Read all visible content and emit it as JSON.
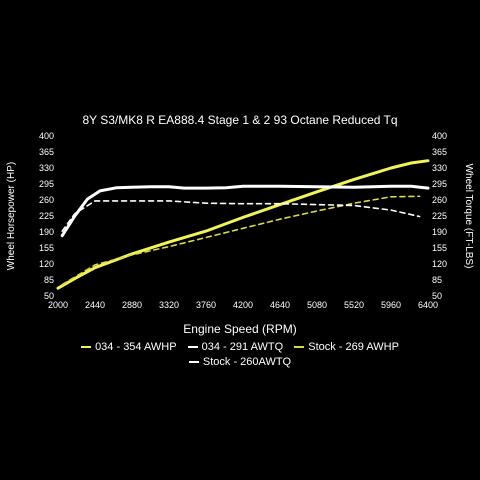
{
  "chart_data": {
    "type": "line",
    "title": "8Y S3/MK8 R EA888.4 Stage 1 & 2 93 Octane Reduced Tq",
    "xlabel": "Engine Speed (RPM)",
    "ylabel_left": "Wheel Horsepower (HP)",
    "ylabel_right": "Wheel Torque (FT-LBS)",
    "xlim": [
      2000,
      6400
    ],
    "ylim": [
      50,
      400
    ],
    "x_ticks": [
      "2000",
      "2440",
      "2880",
      "3320",
      "3760",
      "4200",
      "4640",
      "5080",
      "5520",
      "5960",
      "6400"
    ],
    "y_ticks": [
      "50",
      "85",
      "120",
      "155",
      "190",
      "225",
      "260",
      "295",
      "330",
      "365",
      "400"
    ],
    "grid": false,
    "legend_position": "bottom",
    "series": [
      {
        "name": "034 - 354 AWHP",
        "color": "#f2f25a",
        "dash": "solid",
        "points": [
          [
            2000,
            67
          ],
          [
            2200,
            88
          ],
          [
            2440,
            112
          ],
          [
            2880,
            142
          ],
          [
            3320,
            168
          ],
          [
            3760,
            192
          ],
          [
            4200,
            222
          ],
          [
            4640,
            250
          ],
          [
            5080,
            278
          ],
          [
            5520,
            305
          ],
          [
            5960,
            330
          ],
          [
            6200,
            341
          ],
          [
            6400,
            346
          ]
        ]
      },
      {
        "name": "034 - 291 AWTQ",
        "color": "#ffffff",
        "dash": "solid",
        "points": [
          [
            2050,
            182
          ],
          [
            2200,
            225
          ],
          [
            2350,
            262
          ],
          [
            2500,
            280
          ],
          [
            2700,
            287
          ],
          [
            2880,
            288
          ],
          [
            3100,
            289
          ],
          [
            3320,
            289
          ],
          [
            3500,
            286
          ],
          [
            3760,
            286
          ],
          [
            4000,
            287
          ],
          [
            4200,
            290
          ],
          [
            4640,
            290
          ],
          [
            5080,
            289
          ],
          [
            5520,
            288
          ],
          [
            5960,
            290
          ],
          [
            6200,
            290
          ],
          [
            6400,
            286
          ]
        ]
      },
      {
        "name": "Stock - 269 AWHP",
        "color": "#d9d94a",
        "dash": "dashed",
        "points": [
          [
            2050,
            75
          ],
          [
            2440,
            118
          ],
          [
            2880,
            140
          ],
          [
            3320,
            158
          ],
          [
            3760,
            178
          ],
          [
            4200,
            198
          ],
          [
            4640,
            218
          ],
          [
            5080,
            236
          ],
          [
            5520,
            253
          ],
          [
            5960,
            267
          ],
          [
            6300,
            268
          ]
        ]
      },
      {
        "name": "Stock - 260AWTQ",
        "color": "#ffffff",
        "dash": "dashed",
        "points": [
          [
            2050,
            192
          ],
          [
            2200,
            230
          ],
          [
            2440,
            258
          ],
          [
            2880,
            258
          ],
          [
            3320,
            258
          ],
          [
            3760,
            253
          ],
          [
            4200,
            252
          ],
          [
            4640,
            252
          ],
          [
            5080,
            250
          ],
          [
            5520,
            248
          ],
          [
            5960,
            238
          ],
          [
            6300,
            224
          ]
        ]
      }
    ]
  }
}
